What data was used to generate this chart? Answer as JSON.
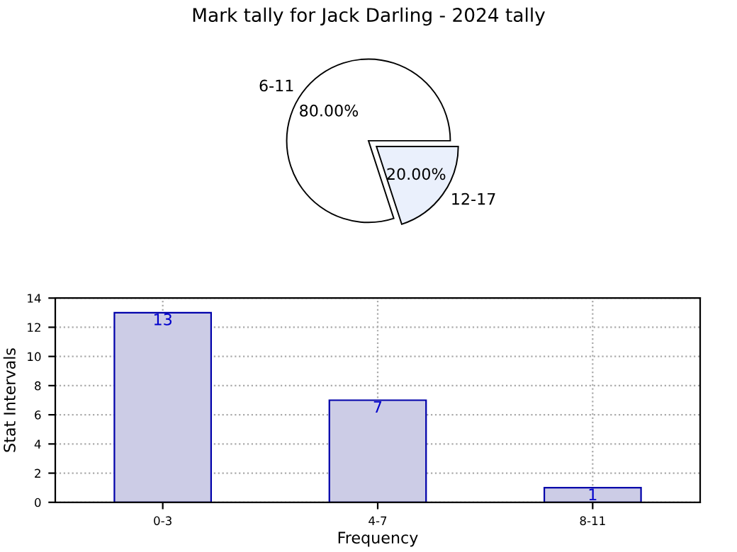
{
  "chart_data": [
    {
      "type": "pie",
      "title": "Mark tally for Jack Darling - 2024 tally",
      "categories": [
        "6-11",
        "12-17"
      ],
      "values": [
        80,
        20
      ],
      "value_labels": [
        "80.00%",
        "20.00%"
      ],
      "colors": [
        "#ffffff",
        "#eaf0fc"
      ],
      "legend": false
    },
    {
      "type": "bar",
      "categories": [
        "0-3",
        "4-7",
        "8-11"
      ],
      "values": [
        13,
        7,
        1
      ],
      "color": "#cccce6",
      "xlabel": "Frequency",
      "ylabel": "Stat Intervals",
      "ylim": [
        0,
        14
      ],
      "yticks": [
        0,
        2,
        4,
        6,
        8,
        10,
        12,
        14
      ],
      "grid": true,
      "data_labels": true,
      "legend": false
    }
  ]
}
